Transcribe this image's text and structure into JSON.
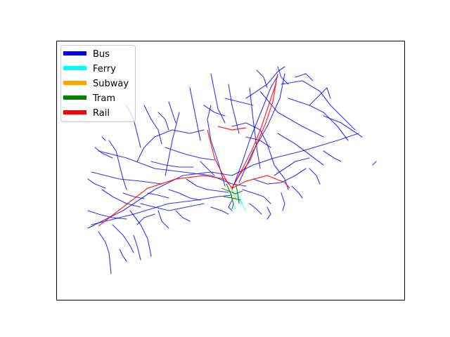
{
  "legend": {
    "placement": "top-left",
    "items": [
      {
        "key": "bus",
        "label": "Bus",
        "color": "#0000ff"
      },
      {
        "key": "ferry",
        "label": "Ferry",
        "color": "#00ffff"
      },
      {
        "key": "subway",
        "label": "Subway",
        "color": "#ffa500"
      },
      {
        "key": "tram",
        "label": "Tram",
        "color": "#008000"
      },
      {
        "key": "rail",
        "label": "Rail",
        "color": "#ff0000"
      }
    ]
  },
  "map": {
    "type": "transit network",
    "axes_ticks": "hidden",
    "frame": "black border"
  }
}
